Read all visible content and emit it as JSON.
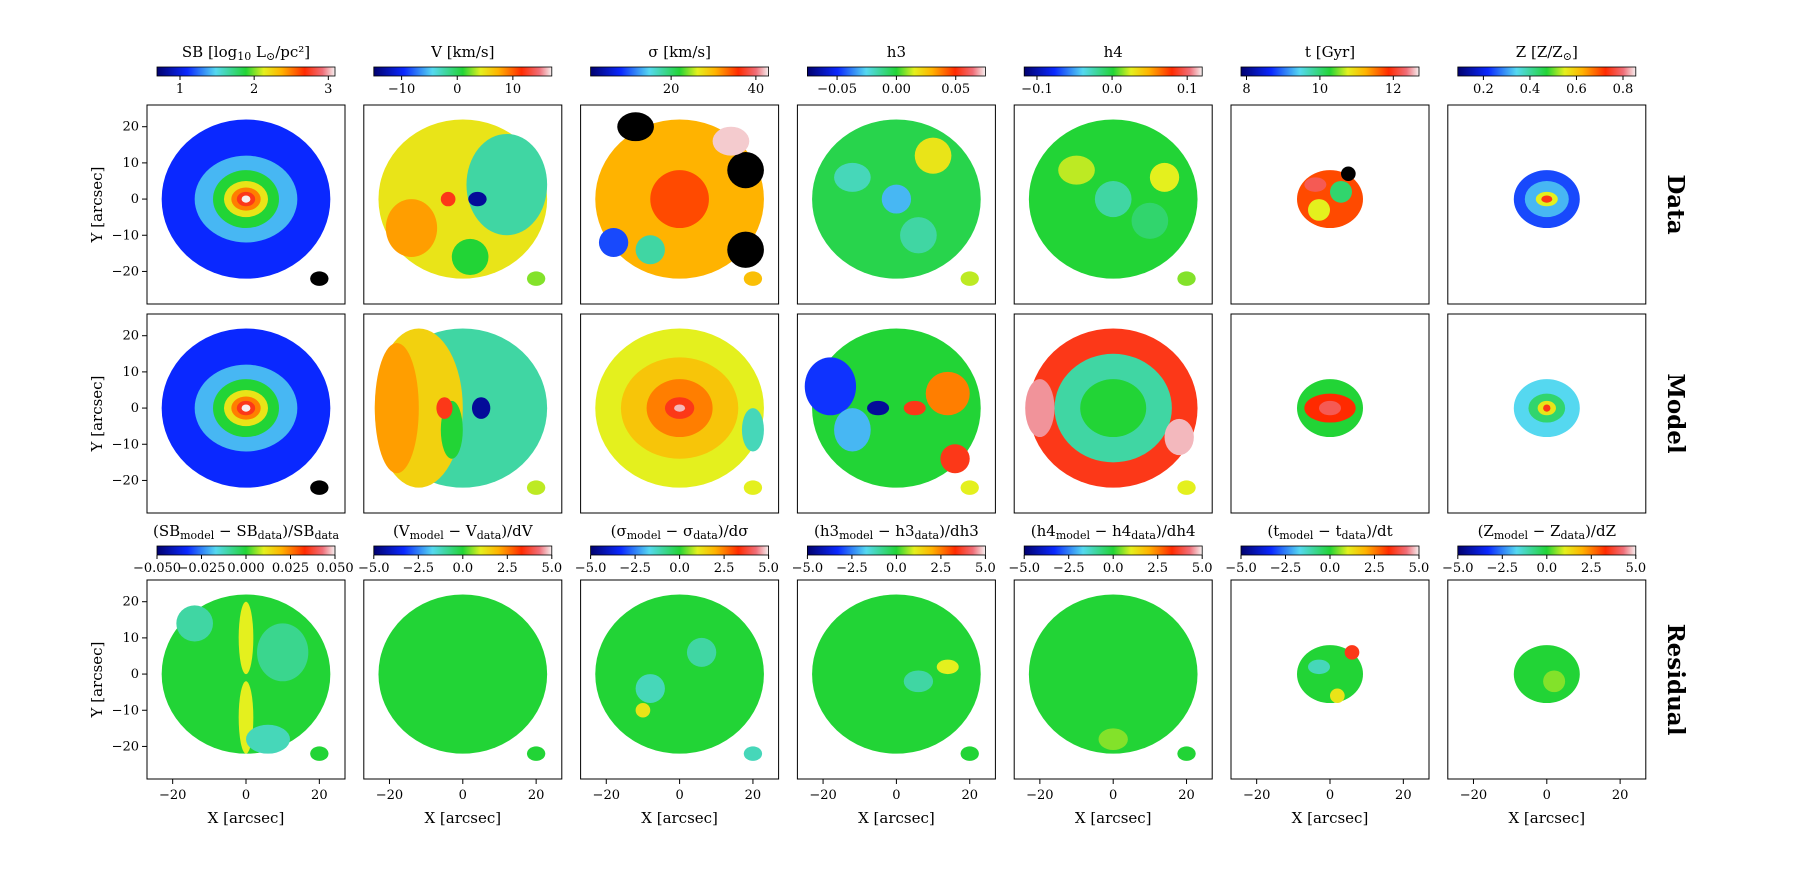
{
  "chart_data": {
    "type": "map-grid",
    "rows": [
      "Data",
      "Model",
      "Residual"
    ],
    "x_label": "X [arcsec]",
    "y_label": "Y [arcsec]",
    "xlim": [
      -27,
      27
    ],
    "ylim": [
      -29,
      26
    ],
    "xticks": [
      {
        "value": -20,
        "label": "−20"
      },
      0,
      20
    ],
    "yticks": [
      {
        "value": -20,
        "label": "−20"
      },
      {
        "value": -10,
        "label": "−10"
      },
      0,
      10,
      20
    ],
    "columns": [
      {
        "colorbar": {
          "label": [
            "SB [log",
            "10",
            " L",
            "⊙",
            "/pc²]"
          ],
          "xlim": [
            0.69,
            3.09
          ],
          "ticks": [
            1,
            2,
            3
          ]
        },
        "residual_colorbar": {
          "label": [
            "(SB",
            "model",
            " − SB",
            "data",
            ")/SB",
            "data"
          ],
          "xlim": [
            -0.05,
            0.05
          ],
          "ticks": [
            {
              "value": -0.05,
              "label": "−0.050"
            },
            {
              "value": -0.025,
              "label": "−0.025"
            },
            {
              "value": 0,
              "label": "0.000"
            },
            {
              "value": 0.025,
              "label": "0.025"
            },
            {
              "value": 0.05,
              "label": "0.050"
            }
          ]
        }
      },
      {
        "colorbar": {
          "label": [
            "V [km/s]"
          ],
          "xlim": [
            -15,
            17
          ],
          "ticks": [
            {
              "value": -10,
              "label": "−10"
            },
            0,
            10
          ]
        },
        "residual_colorbar": {
          "label": [
            "(V",
            "model",
            " − V",
            "data",
            ")/dV"
          ],
          "xlim": [
            -5,
            5
          ],
          "ticks": [
            {
              "value": -5,
              "label": "−5.0"
            },
            {
              "value": -2.5,
              "label": "−2.5"
            },
            {
              "value": 0,
              "label": "0.0"
            },
            2.5,
            {
              "value": 5,
              "label": "5.0"
            }
          ]
        }
      },
      {
        "colorbar": {
          "label": [
            "σ [km/s]"
          ],
          "xlim": [
            1,
            43
          ],
          "ticks": [
            20,
            40
          ]
        },
        "residual_colorbar": {
          "label": [
            "(σ",
            "model",
            " − σ",
            "data",
            ")/dσ"
          ],
          "xlim": [
            -5,
            5
          ],
          "ticks": [
            {
              "value": -5,
              "label": "−5.0"
            },
            {
              "value": -2.5,
              "label": "−2.5"
            },
            {
              "value": 0,
              "label": "0.0"
            },
            2.5,
            {
              "value": 5,
              "label": "5.0"
            }
          ]
        }
      },
      {
        "colorbar": {
          "label": [
            "h3"
          ],
          "xlim": [
            -0.075,
            0.075
          ],
          "ticks": [
            {
              "value": -0.05,
              "label": "−0.05"
            },
            {
              "value": 0,
              "label": "0.00"
            },
            0.05
          ]
        },
        "residual_colorbar": {
          "label": [
            "(h3",
            "model",
            " − h3",
            "data",
            ")/dh3"
          ],
          "xlim": [
            -5,
            5
          ],
          "ticks": [
            {
              "value": -5,
              "label": "−5.0"
            },
            {
              "value": -2.5,
              "label": "−2.5"
            },
            {
              "value": 0,
              "label": "0.0"
            },
            2.5,
            {
              "value": 5,
              "label": "5.0"
            }
          ]
        }
      },
      {
        "colorbar": {
          "label": [
            "h4"
          ],
          "xlim": [
            -0.117,
            0.12
          ],
          "ticks": [
            {
              "value": -0.1,
              "label": "−0.1"
            },
            {
              "value": 0,
              "label": "0.0"
            },
            0.1
          ]
        },
        "residual_colorbar": {
          "label": [
            "(h4",
            "model",
            " − h4",
            "data",
            ")/dh4"
          ],
          "xlim": [
            -5,
            5
          ],
          "ticks": [
            {
              "value": -5,
              "label": "−5.0"
            },
            {
              "value": -2.5,
              "label": "−2.5"
            },
            {
              "value": 0,
              "label": "0.0"
            },
            2.5,
            {
              "value": 5,
              "label": "5.0"
            }
          ]
        }
      },
      {
        "colorbar": {
          "label": [
            "t [Gyr]"
          ],
          "xlim": [
            7.85,
            12.7
          ],
          "ticks": [
            8,
            10,
            12
          ]
        },
        "residual_colorbar": {
          "label": [
            "(t",
            "model",
            " − t",
            "data",
            ")/dt"
          ],
          "xlim": [
            -5,
            5
          ],
          "ticks": [
            {
              "value": -5,
              "label": "−5.0"
            },
            {
              "value": -2.5,
              "label": "−2.5"
            },
            {
              "value": 0,
              "label": "0.0"
            },
            2.5,
            {
              "value": 5,
              "label": "5.0"
            }
          ]
        }
      },
      {
        "colorbar": {
          "label": [
            "Z [Z/Z",
            "⊙",
            "]"
          ],
          "xlim": [
            0.09,
            0.855
          ],
          "ticks": [
            0.2,
            0.4,
            0.6,
            0.8
          ]
        },
        "residual_colorbar": {
          "label": [
            "(Z",
            "model",
            " − Z",
            "data",
            ")/dZ"
          ],
          "xlim": [
            -5,
            5
          ],
          "ticks": [
            {
              "value": -5,
              "label": "−5.0"
            },
            {
              "value": -2.5,
              "label": "−2.5"
            },
            {
              "value": 0,
              "label": "0.0"
            },
            2.5,
            {
              "value": 5,
              "label": "5.0"
            }
          ]
        }
      }
    ]
  }
}
